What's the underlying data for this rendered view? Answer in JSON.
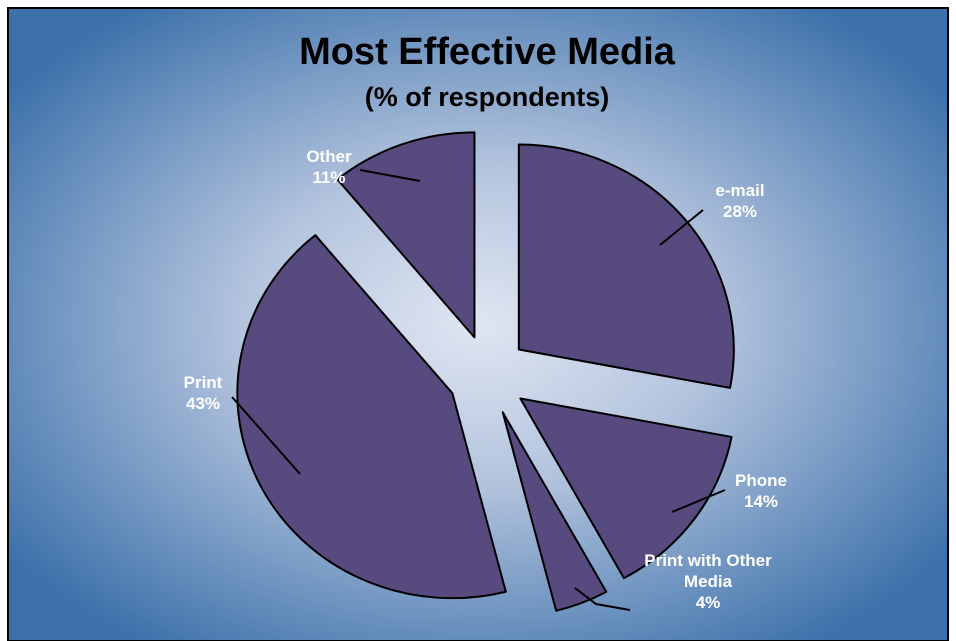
{
  "chart_data": {
    "type": "pie",
    "title": "Most Effective Media",
    "subtitle": "(% of respondents)",
    "series": [
      {
        "slices": [
          {
            "label_lines": [
              "e-mail"
            ],
            "value": 28,
            "value_label": "28%"
          },
          {
            "label_lines": [
              "Phone"
            ],
            "value": 14,
            "value_label": "14%"
          },
          {
            "label_lines": [
              "Print with Other",
              "Media"
            ],
            "value": 4,
            "value_label": "4%"
          },
          {
            "label_lines": [
              "Print"
            ],
            "value": 43,
            "value_label": "43%"
          },
          {
            "label_lines": [
              "Other"
            ],
            "value": 11,
            "value_label": "11%"
          }
        ]
      }
    ],
    "exploded": true,
    "legend": "none",
    "colors": {
      "slice_fill": "#574a7f",
      "slice_stroke": "#000000",
      "label_text": "#ffffff",
      "title_text": "#000000",
      "bg_center": "#dfe6f2",
      "bg_edge": "#3c71aa"
    }
  }
}
